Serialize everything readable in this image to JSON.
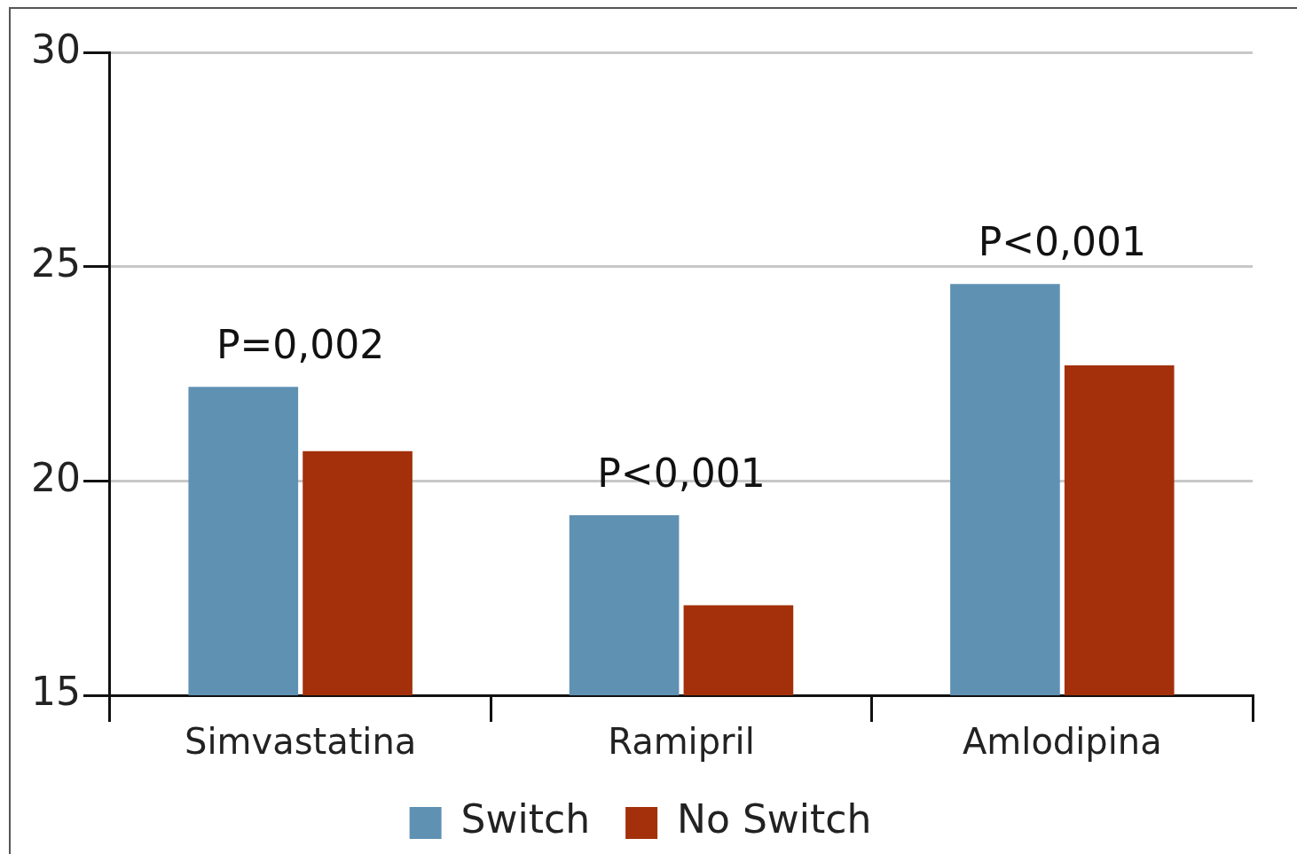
{
  "chart_data": {
    "type": "bar",
    "categories": [
      "Simvastatina",
      "Ramipril",
      "Amlodipina"
    ],
    "series": [
      {
        "name": "Switch",
        "color": "#5f91b3",
        "values": [
          22.2,
          19.2,
          24.6
        ]
      },
      {
        "name": "No Switch",
        "color": "#a3300a",
        "values": [
          20.7,
          17.1,
          22.7
        ]
      }
    ],
    "ylim": [
      15,
      30
    ],
    "yticks": [
      15,
      20,
      25,
      30
    ],
    "grid": "y",
    "legend": "bottom",
    "annotations": [
      {
        "text": "P=0,002",
        "x": "Simvastatina",
        "y": 22.2
      },
      {
        "text": "P<0,001",
        "x": "Ramipril",
        "y": 19.2
      },
      {
        "text": "P<0,001",
        "x": "Amlodipina",
        "y": 24.6
      }
    ]
  }
}
